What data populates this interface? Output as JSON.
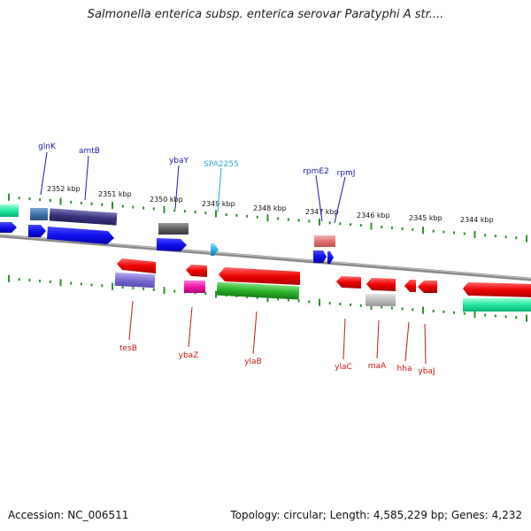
{
  "header": {
    "title": "Salmonella enterica subsp. enterica serovar Paratyphi A str...."
  },
  "footer": {
    "accession": "Accession: NC_006511",
    "summary": "Topology: circular; Length: 4,585,229 bp; Genes: 4,232"
  },
  "colors": {
    "backbone": "#8a8a8a",
    "tick": "#2f8f2f",
    "label_top": "#1a1aa6",
    "label_bottom": "#c81818",
    "label_highlight": "#2aa7d6"
  },
  "kbp_labels": [
    "2352 kbp",
    "2351 kbp",
    "2350 kbp",
    "2349 kbp",
    "2348 kbp",
    "2347 kbp",
    "2346 kbp",
    "2345 kbp",
    "2344 kbp"
  ],
  "genes_top": [
    "glnK",
    "amtB",
    "ybaY",
    "SPA2255",
    "rpmE2",
    "rpmJ"
  ],
  "genes_bottom": [
    "tesB",
    "ybaZ",
    "ylaB",
    "ylaC",
    "maA",
    "hha",
    "ybaJ"
  ]
}
